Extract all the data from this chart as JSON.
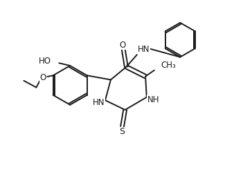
{
  "background_color": "#ffffff",
  "line_color": "#1a1a1a",
  "line_width": 1.4,
  "font_size": 8.5,
  "figsize": [
    3.51,
    2.78
  ],
  "dpi": 100,
  "xlim": [
    0,
    10
  ],
  "ylim": [
    0,
    8
  ]
}
